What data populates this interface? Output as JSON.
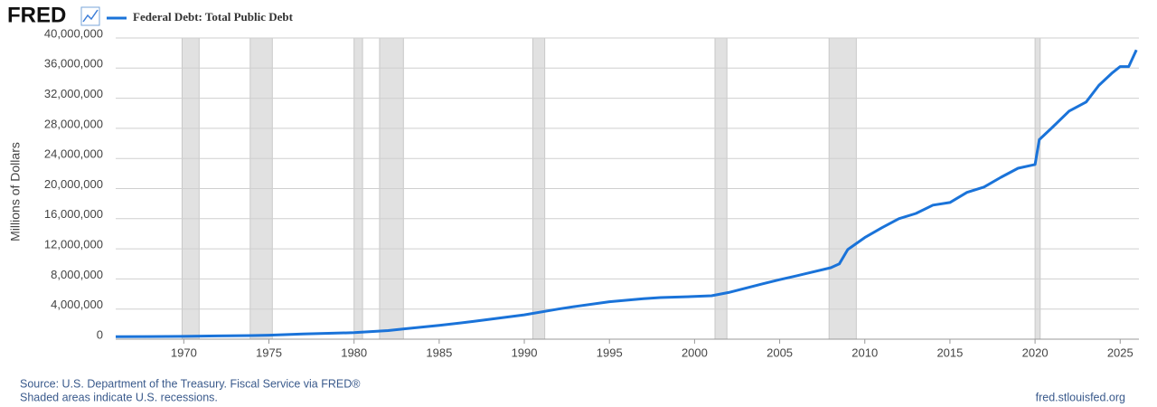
{
  "chart_data": {
    "type": "line",
    "brand": "FRED",
    "y_label": "Millions of Dollars",
    "source": "Source: U.S. Department of the Treasury. Fiscal Service via FRED®",
    "note": "Shaded areas indicate U.S. recessions.",
    "site": "fred.stlouisfed.org",
    "xlim": [
      1966,
      2026.1
    ],
    "xticks": [
      1970,
      1975,
      1980,
      1985,
      1990,
      1995,
      2000,
      2005,
      2010,
      2015,
      2020,
      2025
    ],
    "ylim": [
      0,
      40000000
    ],
    "yticks": [
      0,
      {
        "value": 4000000,
        "label": "4,000,000"
      },
      {
        "value": 8000000,
        "label": "8,000,000"
      },
      {
        "value": 12000000,
        "label": "12,000,000"
      },
      {
        "value": 16000000,
        "label": "16,000,000"
      },
      {
        "value": 20000000,
        "label": "20,000,000"
      },
      {
        "value": 24000000,
        "label": "24,000,000"
      },
      {
        "value": 28000000,
        "label": "28,000,000"
      },
      {
        "value": 32000000,
        "label": "32,000,000"
      },
      {
        "value": 36000000,
        "label": "36,000,000"
      },
      {
        "value": 40000000,
        "label": "40,000,000"
      }
    ],
    "grid": true,
    "recessions": [
      [
        1969.9,
        1970.9
      ],
      [
        1973.9,
        1975.2
      ],
      [
        1980.0,
        1980.5
      ],
      [
        1981.5,
        1982.9
      ],
      [
        1990.5,
        1991.2
      ],
      [
        2001.2,
        2001.9
      ],
      [
        2007.9,
        2009.5
      ],
      [
        2020.0,
        2020.3
      ]
    ],
    "recession_color": "#e1e1e1",
    "series": [
      {
        "name": "Federal Debt: Total Public Debt",
        "color": "#1a73d9",
        "x": [
          1966,
          1968,
          1970,
          1972,
          1974,
          1975,
          1977,
          1980,
          1982,
          1983,
          1985,
          1987,
          1990,
          1992,
          1993,
          1995,
          1997,
          1998,
          2000,
          2001,
          2002,
          2004,
          2005,
          2006,
          2008,
          2008.5,
          2009,
          2010,
          2011,
          2012,
          2013,
          2014,
          2015,
          2016,
          2017,
          2018,
          2019,
          2020,
          2020.25,
          2021,
          2022,
          2023,
          2023.75,
          2024.5,
          2025,
          2025.5,
          2025.95
        ],
        "values": [
          320000,
          350000,
          370000,
          430000,
          480000,
          530000,
          700000,
          860000,
          1140000,
          1380000,
          1820000,
          2350000,
          3230000,
          4000000,
          4350000,
          4970000,
          5370000,
          5530000,
          5670000,
          5770000,
          6200000,
          7350000,
          7900000,
          8420000,
          9490000,
          10000000,
          11900000,
          13500000,
          14800000,
          16000000,
          16700000,
          17800000,
          18150000,
          19500000,
          20200000,
          21500000,
          22700000,
          23200000,
          26500000,
          28100000,
          30300000,
          31500000,
          33700000,
          35300000,
          36200000,
          36200000,
          38400000
        ]
      }
    ]
  }
}
